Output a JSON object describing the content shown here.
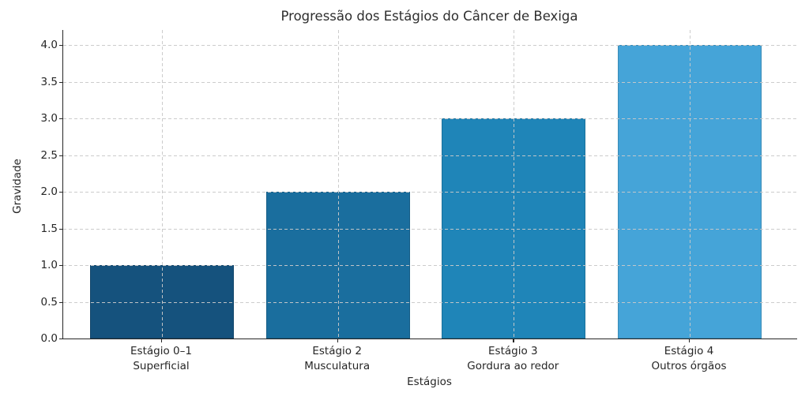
{
  "chart_data": {
    "type": "bar",
    "title": "Progressão dos Estágios do Câncer de Bexiga",
    "xlabel": "Estágios",
    "ylabel": "Gravidade",
    "categories": [
      "Estágio 0–1\nSuperficial",
      "Estágio 2\nMusculatura",
      "Estágio 3\nGordura ao redor",
      "Estágio 4\nOutros órgãos"
    ],
    "values": [
      1,
      2,
      3,
      4
    ],
    "bar_colors": [
      "#15527d",
      "#1a6e9e",
      "#1f85b8",
      "#45a4d8"
    ],
    "yticks": [
      0.0,
      0.5,
      1.0,
      1.5,
      2.0,
      2.5,
      3.0,
      3.5,
      4.0
    ],
    "ytick_labels": [
      "0.0",
      "0.5",
      "1.0",
      "1.5",
      "2.0",
      "2.5",
      "3.0",
      "3.5",
      "4.0"
    ],
    "ylim": [
      0,
      4.2
    ],
    "grid": {
      "visible": true,
      "style": "dashed",
      "color": "#c9c9c9",
      "axes": "both",
      "above_bars": true
    },
    "legend": "none",
    "background_color": "#ffffff",
    "text_color": "#262626"
  }
}
